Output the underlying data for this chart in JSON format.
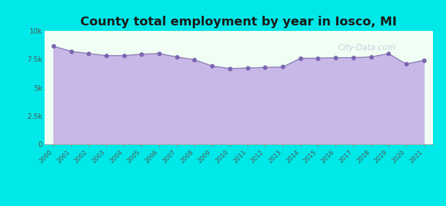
{
  "title": "County total employment by year in Iosco, MI",
  "title_fontsize": 13,
  "title_fontweight": "bold",
  "background_color": "#00e8e8",
  "plot_bg_color": "#f0fef4",
  "fill_color": "#c8b8e8",
  "line_color": "#8b7bb5",
  "marker_color": "#7b65b0",
  "years": [
    2000,
    2001,
    2002,
    2003,
    2004,
    2005,
    2006,
    2007,
    2008,
    2009,
    2010,
    2011,
    2012,
    2013,
    2014,
    2015,
    2016,
    2017,
    2018,
    2019,
    2020,
    2021
  ],
  "values": [
    8650,
    8200,
    8000,
    7820,
    7820,
    7950,
    8000,
    7700,
    7450,
    6900,
    6680,
    6720,
    6780,
    6820,
    7580,
    7600,
    7630,
    7650,
    7700,
    8000,
    7080,
    7400
  ],
  "ylim": [
    0,
    10000
  ],
  "yticks": [
    0,
    2500,
    5000,
    7500,
    10000
  ],
  "ytick_labels": [
    "0",
    "2.5k",
    "5k",
    "7.5k",
    "10k"
  ],
  "watermark": "City-Data.com"
}
